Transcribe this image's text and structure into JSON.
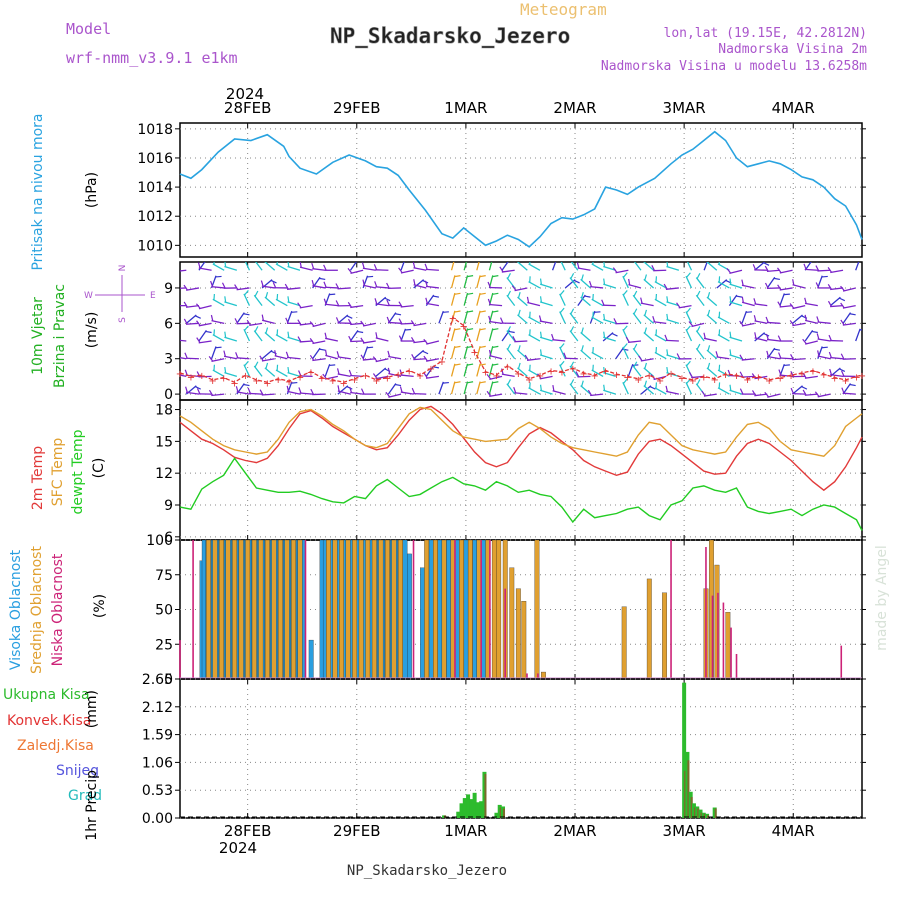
{
  "header": {
    "model_label": "Model",
    "model_value": "wrf-nmm_v3.9.1 e1km",
    "meteogram_label": "Meteogram",
    "station_title": "NP_Skadarsko_Jezero",
    "lonlat": "lon,lat (19.15E, 42.2812N)",
    "elevation": "Nadmorska Visina 2m",
    "model_elevation": "Nadmorska Visina u modelu 13.6258m",
    "footer_title": "NP_Skadarsko_Jezero",
    "watermark": "made by Angel"
  },
  "time_axis": {
    "year": "2024",
    "days": [
      "28FEB",
      "29FEB",
      "1MAR",
      "2MAR",
      "3MAR",
      "4MAR"
    ],
    "day_offsets": [
      0.62,
      1.62,
      2.62,
      3.62,
      4.62,
      5.62
    ],
    "range_days": [
      0,
      6.25
    ]
  },
  "colors": {
    "pressure": "#29a3e0",
    "wind_label": "#22b022",
    "wind_speed": "#e23333",
    "t2m": "#e23a3a",
    "sfc": "#e0a030",
    "dewpt": "#22cc22",
    "cloud_high": "#2a9fe0",
    "cloud_mid": "#e0a030",
    "cloud_low": "#cc2277",
    "precip_total": "#2dbb2d",
    "precip_conv": "#e23333",
    "precip_frz": "#ee7733",
    "snow": "#5555dd",
    "grad": "#22bbbb",
    "compass": "#aa55cc",
    "barb_purple": "#7a22c8",
    "barb_cyan": "#22c4cc",
    "barb_green": "#22bb44",
    "barb_blue": "#3333cc"
  },
  "chart_data": [
    {
      "type": "line",
      "name": "pressure",
      "ylabel": "Pritisak na nivou mora",
      "unit": "(hPa)",
      "ylim": [
        1009.2,
        1018.4
      ],
      "yticks": [
        1010,
        1012,
        1014,
        1016,
        1018
      ],
      "x": [
        0,
        0.1,
        0.2,
        0.35,
        0.5,
        0.65,
        0.8,
        0.95,
        1.0,
        1.1,
        1.25,
        1.4,
        1.55,
        1.7,
        1.8,
        1.9,
        2.0,
        2.1,
        2.25,
        2.4,
        2.5,
        2.6,
        2.7,
        2.8,
        2.9,
        3.0,
        3.1,
        3.2,
        3.3,
        3.4,
        3.5,
        3.6,
        3.7,
        3.8,
        3.9,
        4.0,
        4.1,
        4.2,
        4.35,
        4.5,
        4.6,
        4.7,
        4.8,
        4.9,
        5.0,
        5.1,
        5.2,
        5.3,
        5.4,
        5.5,
        5.6,
        5.7,
        5.8,
        5.9,
        6.0,
        6.1,
        6.2,
        6.25
      ],
      "values": [
        1014.9,
        1014.6,
        1015.2,
        1016.4,
        1017.3,
        1017.2,
        1017.6,
        1016.8,
        1016.1,
        1015.3,
        1014.9,
        1015.7,
        1016.2,
        1015.8,
        1015.4,
        1015.3,
        1014.8,
        1013.8,
        1012.4,
        1010.8,
        1010.5,
        1011.2,
        1010.6,
        1010.0,
        1010.3,
        1010.7,
        1010.4,
        1009.9,
        1010.6,
        1011.5,
        1011.9,
        1011.8,
        1012.1,
        1012.5,
        1014.0,
        1013.8,
        1013.5,
        1014.0,
        1014.6,
        1015.6,
        1016.2,
        1016.6,
        1017.2,
        1017.8,
        1017.2,
        1016.0,
        1015.4,
        1015.6,
        1015.8,
        1015.6,
        1015.2,
        1014.7,
        1014.5,
        1014.0,
        1013.2,
        1012.7,
        1011.4,
        1010.4
      ]
    },
    {
      "type": "line",
      "name": "wind",
      "ylabel": "10m Vjetar",
      "ylabel2": "Brzina i Pravac",
      "unit": "(m/s)",
      "compass_n": "N",
      "compass_s": "S",
      "compass_w": "W",
      "compass_e": "E",
      "ylim": [
        -0.5,
        11.2
      ],
      "yticks": [
        0,
        3,
        6,
        9
      ],
      "x": [
        0,
        0.1,
        0.2,
        0.3,
        0.4,
        0.5,
        0.6,
        0.7,
        0.8,
        0.9,
        1.0,
        1.1,
        1.2,
        1.3,
        1.4,
        1.5,
        1.6,
        1.7,
        1.8,
        1.9,
        2.0,
        2.1,
        2.2,
        2.3,
        2.4,
        2.5,
        2.6,
        2.7,
        2.8,
        2.9,
        3.0,
        3.1,
        3.2,
        3.3,
        3.4,
        3.5,
        3.6,
        3.7,
        3.8,
        3.9,
        4.0,
        4.1,
        4.2,
        4.3,
        4.4,
        4.5,
        4.6,
        4.7,
        4.8,
        4.9,
        5.0,
        5.1,
        5.2,
        5.3,
        5.4,
        5.5,
        5.6,
        5.7,
        5.8,
        5.9,
        6.0,
        6.1,
        6.2,
        6.25
      ],
      "values": [
        1.8,
        1.5,
        1.6,
        1.2,
        1.4,
        1.0,
        1.6,
        1.2,
        1.0,
        1.3,
        1.1,
        1.5,
        1.9,
        1.4,
        1.2,
        1.0,
        1.3,
        1.6,
        1.2,
        1.4,
        1.7,
        2.0,
        1.6,
        2.2,
        2.8,
        6.5,
        5.8,
        3.6,
        1.9,
        1.6,
        2.4,
        1.8,
        1.3,
        1.6,
        2.0,
        1.9,
        2.2,
        1.8,
        1.6,
        2.0,
        1.7,
        1.5,
        1.3,
        1.6,
        1.2,
        1.8,
        1.4,
        1.2,
        1.5,
        1.3,
        1.7,
        1.6,
        1.3,
        1.5,
        1.2,
        1.4,
        1.6,
        1.8,
        2.0,
        1.7,
        1.4,
        1.2,
        1.5,
        1.6
      ]
    },
    {
      "type": "line",
      "name": "temperature",
      "ylabel": "2m Temp",
      "ylabel2": "SFC Temp",
      "ylabel3": "dewpt Temp",
      "unit": "(C)",
      "ylim": [
        5.7,
        18.9
      ],
      "yticks": [
        6,
        9,
        12,
        15,
        18
      ],
      "x": [
        0,
        0.1,
        0.2,
        0.3,
        0.4,
        0.5,
        0.6,
        0.7,
        0.8,
        0.9,
        1.0,
        1.1,
        1.2,
        1.3,
        1.4,
        1.5,
        1.6,
        1.7,
        1.8,
        1.9,
        2.0,
        2.1,
        2.2,
        2.3,
        2.4,
        2.5,
        2.6,
        2.7,
        2.8,
        2.9,
        3.0,
        3.1,
        3.2,
        3.3,
        3.4,
        3.5,
        3.6,
        3.7,
        3.8,
        3.9,
        4.0,
        4.1,
        4.2,
        4.3,
        4.4,
        4.5,
        4.6,
        4.7,
        4.8,
        4.9,
        5.0,
        5.1,
        5.2,
        5.3,
        5.4,
        5.5,
        5.6,
        5.7,
        5.8,
        5.9,
        6.0,
        6.1,
        6.2,
        6.25
      ],
      "series": [
        {
          "name": "2m Temp",
          "values": [
            16.8,
            16.0,
            15.2,
            14.8,
            14.2,
            13.5,
            13.2,
            13.0,
            13.4,
            14.6,
            16.2,
            17.6,
            17.9,
            17.2,
            16.4,
            15.8,
            15.2,
            14.6,
            14.2,
            14.4,
            15.6,
            17.0,
            18.0,
            18.3,
            17.6,
            16.6,
            15.3,
            14.0,
            13.0,
            12.6,
            13.0,
            14.4,
            15.7,
            16.3,
            15.8,
            15.0,
            14.2,
            13.2,
            12.6,
            12.2,
            11.8,
            12.1,
            13.8,
            15.0,
            15.2,
            14.6,
            13.8,
            13.0,
            12.2,
            11.9,
            12.0,
            13.6,
            14.8,
            15.2,
            14.8,
            14.0,
            13.2,
            12.2,
            11.2,
            10.4,
            11.2,
            12.6,
            14.4,
            15.4
          ]
        },
        {
          "name": "SFC Temp",
          "values": [
            17.4,
            16.8,
            16.0,
            15.2,
            14.6,
            14.2,
            14.0,
            13.8,
            14.0,
            15.2,
            16.8,
            17.8,
            18.0,
            17.4,
            16.6,
            16.0,
            15.2,
            14.6,
            14.4,
            14.8,
            16.2,
            17.6,
            18.2,
            18.0,
            17.0,
            16.0,
            15.4,
            15.2,
            15.0,
            15.1,
            15.2,
            16.2,
            16.8,
            16.2,
            15.4,
            14.8,
            14.4,
            14.2,
            14.0,
            13.8,
            13.6,
            14.0,
            15.6,
            16.8,
            16.6,
            15.6,
            14.6,
            14.2,
            14.0,
            13.8,
            14.0,
            15.4,
            16.6,
            16.8,
            16.2,
            15.0,
            14.2,
            14.0,
            13.8,
            13.6,
            14.6,
            16.4,
            17.2,
            17.6
          ]
        },
        {
          "name": "dewpt Temp",
          "values": [
            8.8,
            8.6,
            10.5,
            11.2,
            11.8,
            13.4,
            12.0,
            10.6,
            10.4,
            10.2,
            10.2,
            10.3,
            10.0,
            9.6,
            9.3,
            9.2,
            9.8,
            9.6,
            10.8,
            11.4,
            10.6,
            9.8,
            10.0,
            10.6,
            11.2,
            11.6,
            11.0,
            10.8,
            10.4,
            11.2,
            10.8,
            10.2,
            10.4,
            10.0,
            9.8,
            8.8,
            7.4,
            8.6,
            7.8,
            8.0,
            8.2,
            8.6,
            8.8,
            8.0,
            7.6,
            9.0,
            9.4,
            10.6,
            10.8,
            10.4,
            10.2,
            10.6,
            8.8,
            8.4,
            8.2,
            8.4,
            8.6,
            8.0,
            8.6,
            9.0,
            8.8,
            8.2,
            7.6,
            6.6
          ]
        }
      ]
    },
    {
      "type": "bar",
      "name": "cloud",
      "ylabel": "Visoka Oblacnost",
      "ylabel2": "Srednja Oblacnost",
      "ylabel3": "Niska Oblacnost",
      "unit": "(%)",
      "ylim": [
        0,
        100
      ],
      "yticks": [
        0,
        25,
        50,
        75,
        100
      ],
      "x_high": [
        0.2,
        0.22,
        0.25,
        0.28,
        0.31,
        0.34,
        0.37,
        0.4,
        0.43,
        0.46,
        0.49,
        0.52,
        0.55,
        0.58,
        0.61,
        0.64,
        0.67,
        0.7,
        0.73,
        0.76,
        0.79,
        0.82,
        0.85,
        0.88,
        0.91,
        0.94,
        0.97,
        1.0,
        1.03,
        1.06,
        1.09,
        1.13,
        1.2,
        1.3,
        1.33,
        1.36,
        1.39,
        1.42,
        1.45,
        1.48,
        1.51,
        1.54,
        1.57,
        1.6,
        1.63,
        1.66,
        1.69,
        1.72,
        1.75,
        1.8,
        1.83,
        1.86,
        1.89,
        1.92,
        1.95,
        1.98,
        2.01,
        2.06,
        2.1,
        2.22,
        2.26,
        2.3,
        2.34,
        2.38,
        2.42,
        2.46,
        2.5,
        2.54,
        2.58,
        2.62,
        2.66,
        2.7,
        2.74,
        2.78,
        2.82,
        4.6,
        4.63
      ],
      "values_high": [
        85,
        100,
        100,
        100,
        100,
        100,
        100,
        100,
        100,
        100,
        100,
        100,
        100,
        100,
        100,
        100,
        100,
        100,
        100,
        100,
        100,
        100,
        100,
        100,
        100,
        100,
        100,
        100,
        100,
        100,
        100,
        100,
        28,
        100,
        100,
        100,
        100,
        100,
        100,
        100,
        100,
        100,
        100,
        100,
        100,
        100,
        100,
        100,
        100,
        100,
        100,
        100,
        100,
        100,
        100,
        100,
        100,
        100,
        90,
        80,
        100,
        100,
        100,
        100,
        100,
        100,
        100,
        100,
        100,
        100,
        100,
        100,
        100,
        100,
        100,
        1,
        1
      ],
      "x_mid": [
        0.24,
        0.3,
        0.36,
        0.42,
        0.48,
        0.54,
        0.6,
        0.66,
        0.72,
        0.78,
        0.84,
        0.9,
        0.96,
        1.02,
        1.08,
        1.34,
        1.4,
        1.46,
        1.52,
        1.58,
        1.64,
        1.7,
        1.76,
        1.82,
        1.88,
        1.94,
        2.0,
        2.24,
        2.32,
        2.4,
        2.48,
        2.56,
        2.64,
        2.72,
        2.8,
        2.86,
        2.9,
        2.96,
        3.02,
        3.08,
        3.13,
        3.25,
        3.31,
        4.05,
        4.28,
        4.42,
        4.8,
        4.85,
        4.9,
        5.0
      ],
      "values_mid": [
        100,
        100,
        100,
        100,
        100,
        100,
        100,
        100,
        100,
        100,
        100,
        100,
        100,
        100,
        100,
        100,
        100,
        100,
        100,
        100,
        100,
        100,
        100,
        100,
        100,
        100,
        100,
        100,
        100,
        100,
        100,
        100,
        100,
        100,
        100,
        100,
        100,
        100,
        80,
        65,
        56,
        100,
        5,
        52,
        72,
        62,
        65,
        100,
        82,
        48
      ],
      "x_low": [
        0.0,
        0.12,
        1.15,
        2.14,
        2.52,
        2.76,
        2.84,
        2.98,
        3.18,
        3.28,
        4.5,
        4.82,
        4.88,
        4.93,
        4.98,
        5.05,
        5.1,
        6.06
      ],
      "values_low": [
        28,
        100,
        100,
        100,
        100,
        100,
        100,
        65,
        4,
        4,
        100,
        95,
        60,
        62,
        55,
        37,
        18,
        24
      ]
    },
    {
      "type": "bar",
      "name": "precip",
      "ylabel": "1hr Precip",
      "unit": "(mm)",
      "label_total": "Ukupna Kisa",
      "label_conv": "Konvek.Kisa",
      "label_frz": "Zaledj.Kisa",
      "label_snow": "Snijeg",
      "label_grad": "Grad",
      "ylim": [
        0,
        2.65
      ],
      "yticks": [
        0,
        0.53,
        1.06,
        1.59,
        2.12,
        2.65
      ],
      "x": [
        2.42,
        2.55,
        2.58,
        2.61,
        2.64,
        2.67,
        2.7,
        2.73,
        2.76,
        2.79,
        2.9,
        2.93,
        2.96,
        4.62,
        4.65,
        4.68,
        4.71,
        4.74,
        4.77,
        4.8,
        4.83,
        4.9
      ],
      "values": [
        0.05,
        0.12,
        0.28,
        0.38,
        0.45,
        0.36,
        0.48,
        0.3,
        0.32,
        0.88,
        0.1,
        0.25,
        0.22,
        2.58,
        1.26,
        0.5,
        0.28,
        0.22,
        0.16,
        0.1,
        0.08,
        0.2
      ],
      "values_conv": [
        0.05,
        0.0,
        0.0,
        0.0,
        0.0,
        0.0,
        0.0,
        0.0,
        0.0,
        0.84,
        0.0,
        0.2,
        0.18,
        0.9,
        1.1,
        0.4,
        0.2,
        0.18,
        0.1,
        0.08,
        0.05,
        0.18
      ]
    }
  ]
}
